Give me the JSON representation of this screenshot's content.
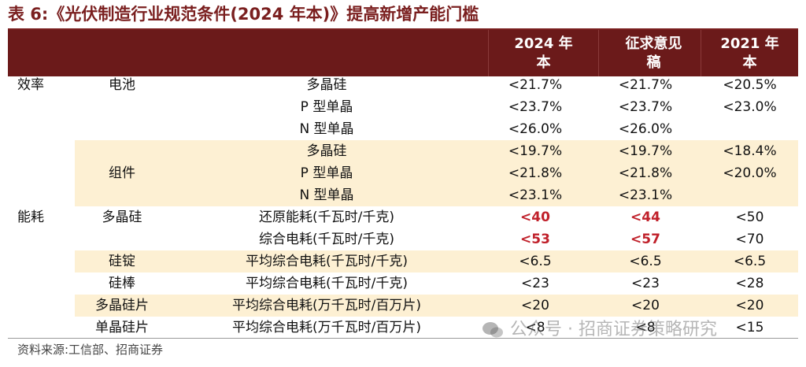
{
  "title": "表 6:《光伏制造行业规范条件(2024 年本)》提高新增产能门槛",
  "header": {
    "col_2024": [
      "2024 年",
      "本"
    ],
    "col_draft": [
      "征求意见",
      "稿"
    ],
    "col_2021": [
      "2021 年",
      "本"
    ]
  },
  "rows": [
    {
      "c1": "效率",
      "c2": "电池",
      "c3": "多晶硅",
      "v2024": "<21.7%",
      "vdraft": "<21.7%",
      "v2021": "<20.5%"
    },
    {
      "c1": "",
      "c2": "",
      "c3": "P 型单晶",
      "v2024": "<23.7%",
      "vdraft": "<23.7%",
      "v2021": "<23.0%"
    },
    {
      "c1": "",
      "c2": "",
      "c3": "N 型单晶",
      "v2024": "<26.0%",
      "vdraft": "<26.0%",
      "v2021": ""
    },
    {
      "c1": "",
      "c2": "",
      "c3": "多晶硅",
      "v2024": "<19.7%",
      "vdraft": "<19.7%",
      "v2021": "<18.4%"
    },
    {
      "c1": "",
      "c2": "组件",
      "c3": "P 型单晶",
      "v2024": "<21.8%",
      "vdraft": "<21.8%",
      "v2021": "<20.0%"
    },
    {
      "c1": "",
      "c2": "",
      "c3": "N 型单晶",
      "v2024": "<23.1%",
      "vdraft": "<23.1%",
      "v2021": ""
    },
    {
      "c1": "能耗",
      "c2": "多晶硅",
      "c3": "还原能耗(千瓦时/千克)",
      "v2024": "<40",
      "vdraft": "<44",
      "v2021": "<50"
    },
    {
      "c1": "",
      "c2": "",
      "c3": "综合电耗(千瓦时/千克)",
      "v2024": "<53",
      "vdraft": "<57",
      "v2021": "<70"
    },
    {
      "c1": "",
      "c2": "硅锭",
      "c3": "平均综合电耗(千瓦时/千克)",
      "v2024": "<6.5",
      "vdraft": "<6.5",
      "v2021": "<6.5"
    },
    {
      "c1": "",
      "c2": "硅棒",
      "c3": "平均综合电耗(千瓦时/千克)",
      "v2024": "<23",
      "vdraft": "<23",
      "v2021": "<28"
    },
    {
      "c1": "",
      "c2": "多晶硅片",
      "c3": "平均综合电耗(万千瓦时/百万片)",
      "v2024": "<20",
      "vdraft": "<20",
      "v2021": "<20"
    },
    {
      "c1": "",
      "c2": "单晶硅片",
      "c3": "平均综合电耗(万千瓦时/百万片)",
      "v2024": "<8",
      "vdraft": "<8",
      "v2021": "<15"
    }
  ],
  "source": "资料来源:工信部、招商证券",
  "watermark": "公众号 · 招商证券策略研究",
  "colors": {
    "header_bg": "#6b1a1a",
    "band_bg": "#fdf0d3",
    "highlight": "#c0202a",
    "title": "#7a1f1f"
  }
}
